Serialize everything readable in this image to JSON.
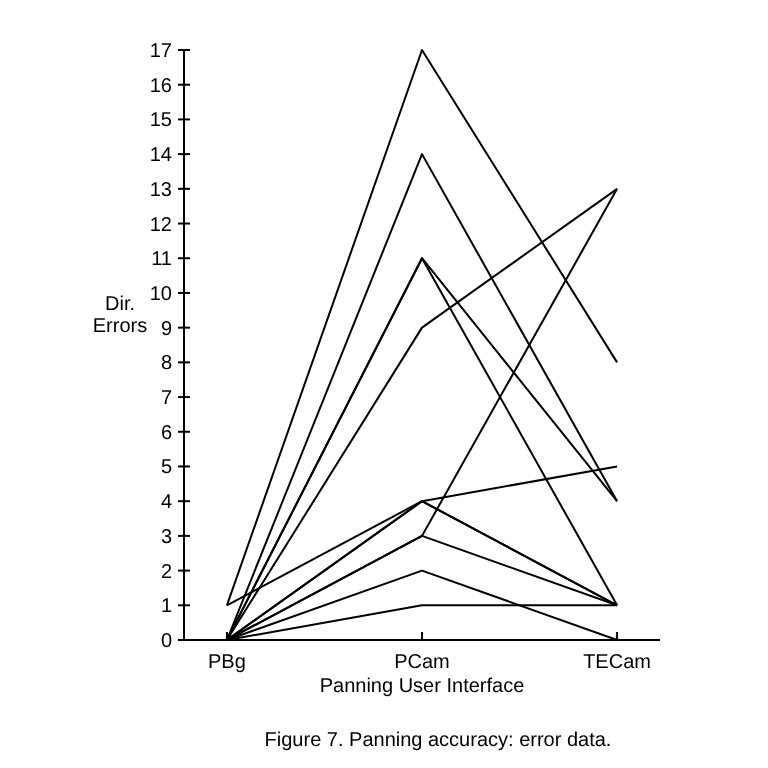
{
  "chart_data": {
    "type": "line",
    "xlabel": "Panning User Interface",
    "ylabel": "Dir. Errors",
    "annotations": [
      "Figure 7. Panning accuracy: error data."
    ],
    "categories": [
      "PBg",
      "PCam",
      "TECam"
    ],
    "ylim": [
      0,
      17
    ],
    "yticks": [
      0,
      1,
      2,
      3,
      4,
      5,
      6,
      7,
      8,
      9,
      10,
      11,
      12,
      13,
      14,
      15,
      16,
      17
    ],
    "grid": false,
    "marker": "none",
    "line_style": "solid",
    "series": [
      {
        "color": "#000000",
        "values": [
          1,
          17,
          8
        ]
      },
      {
        "color": "#000000",
        "values": [
          0,
          14,
          4
        ]
      },
      {
        "color": "#000000",
        "values": [
          0,
          11,
          4
        ]
      },
      {
        "color": "#000000",
        "values": [
          0,
          11,
          1
        ]
      },
      {
        "color": "#000000",
        "values": [
          0,
          9,
          13
        ]
      },
      {
        "color": "#000000",
        "values": [
          1,
          4,
          5
        ]
      },
      {
        "color": "#000000",
        "values": [
          0,
          4,
          1
        ]
      },
      {
        "color": "#000000",
        "values": [
          0,
          4,
          1
        ]
      },
      {
        "color": "#000000",
        "values": [
          0,
          3,
          13
        ]
      },
      {
        "color": "#000000",
        "values": [
          0,
          3,
          1
        ]
      },
      {
        "color": "#000000",
        "values": [
          0,
          2,
          0
        ]
      },
      {
        "color": "#000000",
        "values": [
          0,
          1,
          1
        ]
      }
    ]
  }
}
